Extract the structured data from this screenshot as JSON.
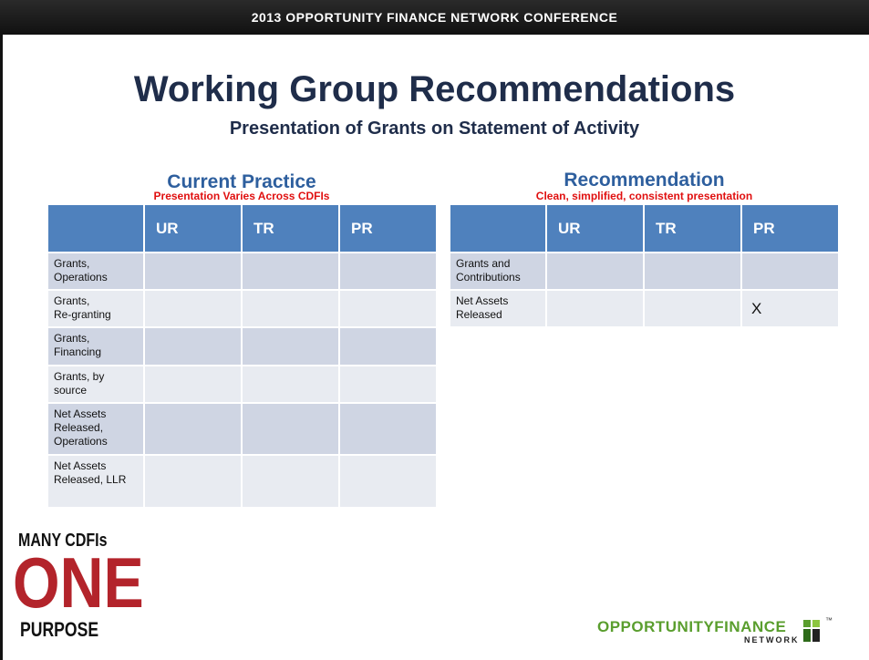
{
  "banner": "2013 OPPORTUNITY FINANCE NETWORK CONFERENCE",
  "title": "Working Group Recommendations",
  "subtitle": "Presentation of Grants on Statement of Activity",
  "current_practice": {
    "heading": "Current Practice",
    "note": "Presentation Varies Across CDFIs",
    "header": [
      "UR",
      "TR",
      "PR"
    ],
    "rows": [
      {
        "label": "Grants,\nOperations"
      },
      {
        "label": "Grants,\nRe-granting"
      },
      {
        "label": "Grants,\nFinancing"
      },
      {
        "label": "Grants, by\nsource"
      },
      {
        "label": "Net Assets\nReleased,\nOperations"
      },
      {
        "label": "Net Assets\nReleased, LLR"
      }
    ]
  },
  "recommendation": {
    "heading": "Recommendation",
    "note": "Clean, simplified, consistent presentation",
    "header": [
      "UR",
      "TR",
      "PR"
    ],
    "rows": [
      {
        "label": "Grants and\nContributions"
      },
      {
        "label": "Net Assets\nReleased",
        "cells": {
          "PR": "X"
        }
      }
    ]
  },
  "logo_left": {
    "line1": "MANY CDFIs",
    "line2": "ONE",
    "line3": "PURPOSE"
  },
  "logo_right": {
    "name": "OPPORTUNITYFINANCE",
    "sub": "NETWORK",
    "tm": "™"
  }
}
